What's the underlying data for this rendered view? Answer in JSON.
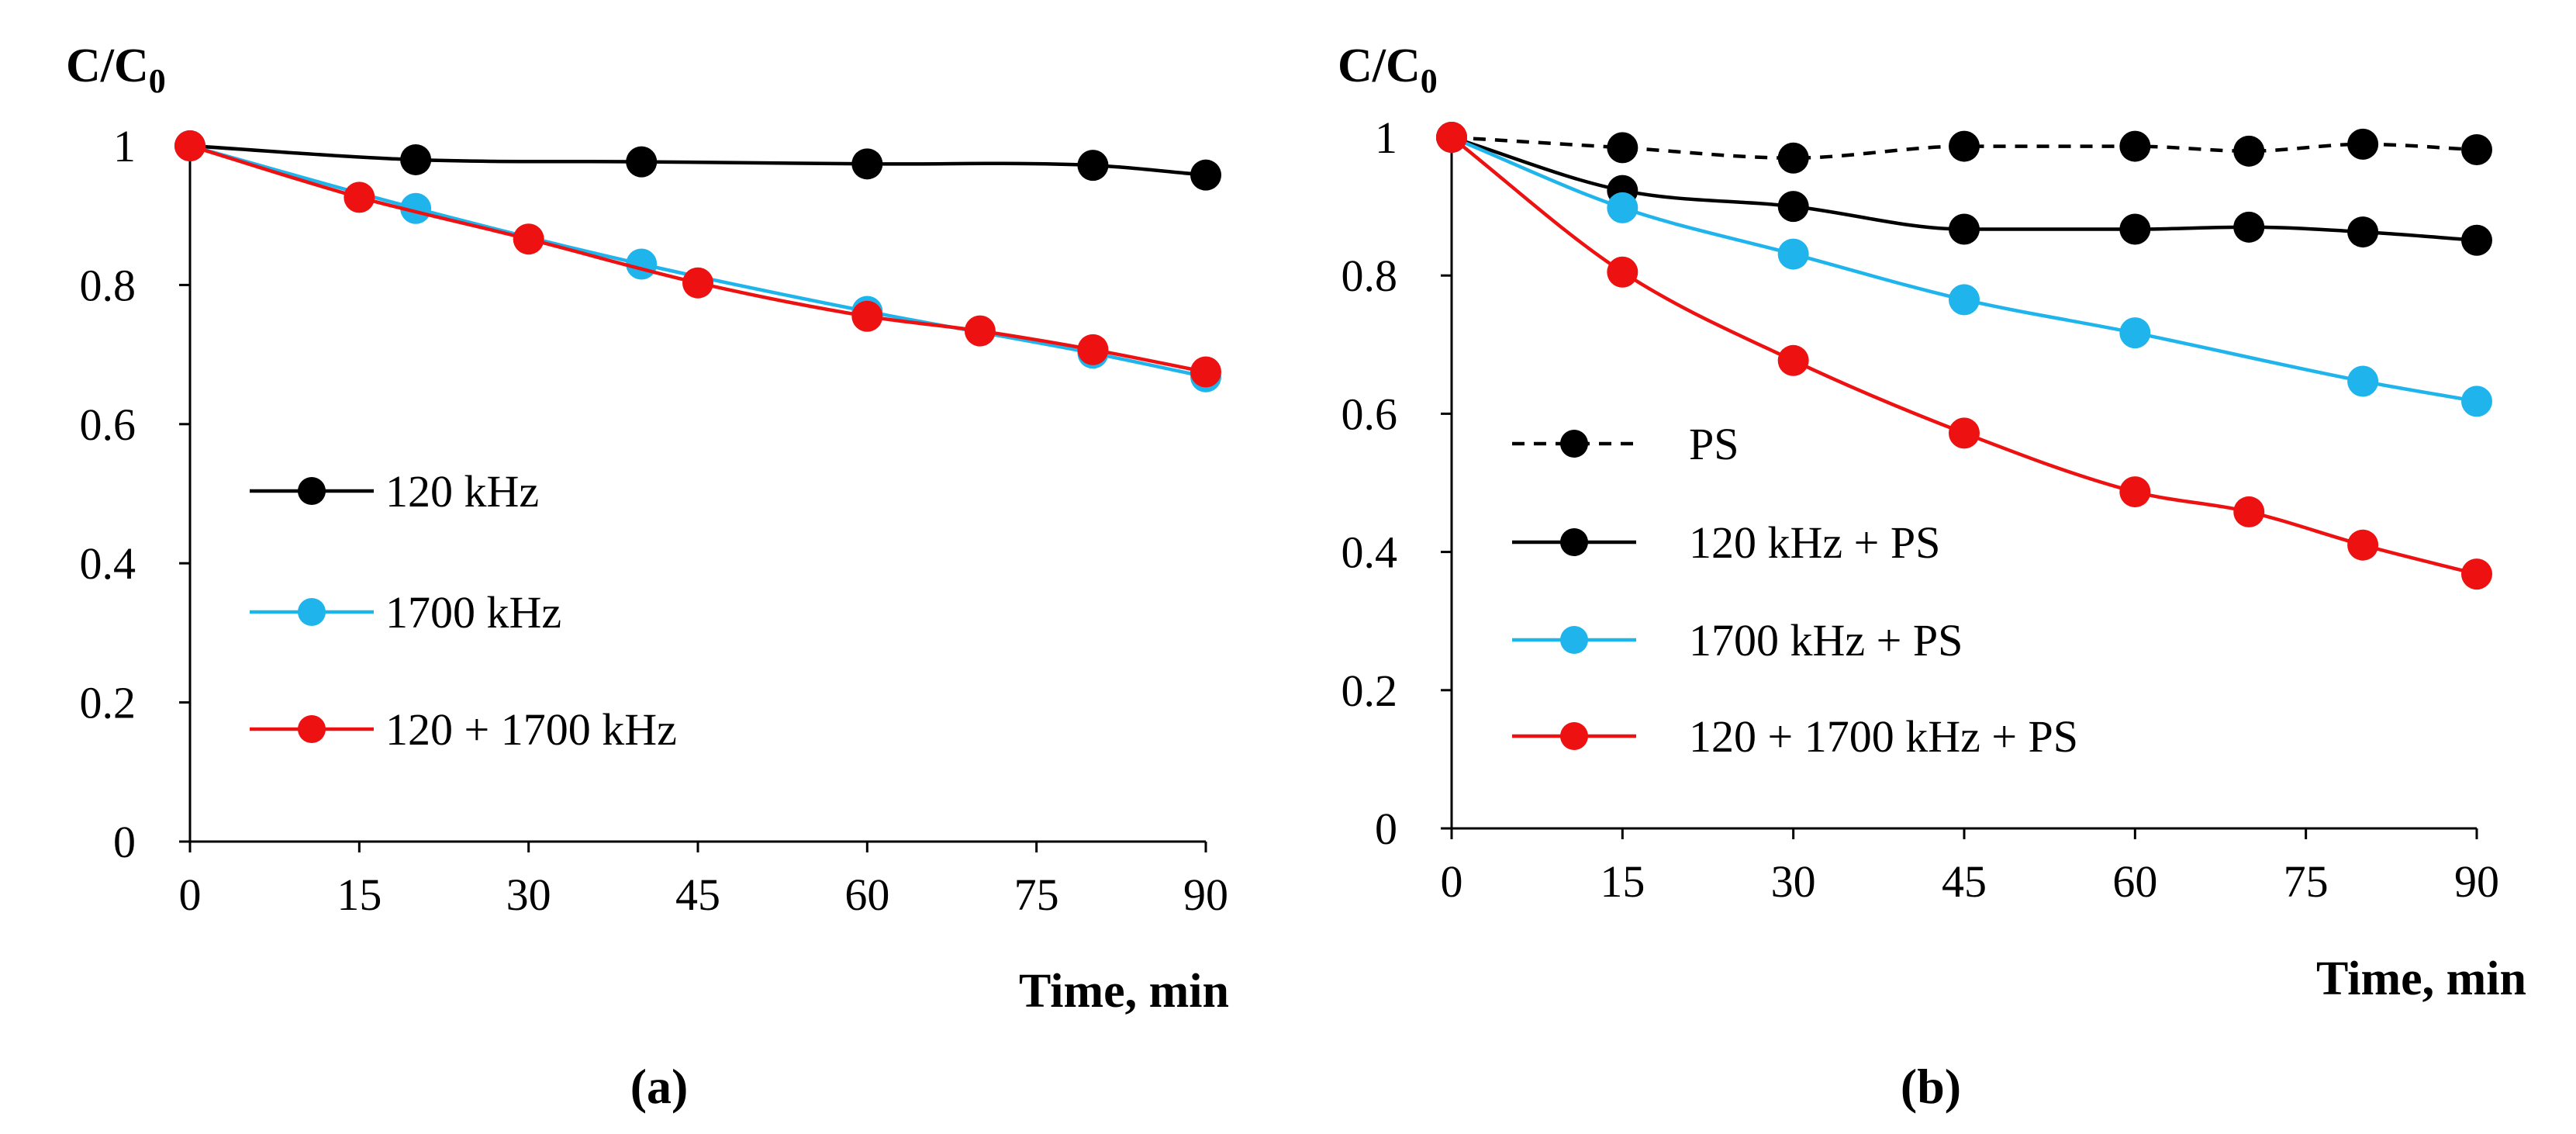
{
  "chart_data": [
    {
      "type": "line",
      "ylabel": "C/C",
      "ylabel_sub": "0",
      "xlabel": "Time, min",
      "caption": "(a)",
      "xlim": [
        0,
        90
      ],
      "ylim": [
        0,
        1
      ],
      "xticks": [
        0,
        15,
        30,
        45,
        60,
        75,
        90
      ],
      "yticks": [
        0,
        0.2,
        0.4,
        0.6,
        0.8,
        1
      ],
      "ytick_labels": [
        "0",
        "0.2",
        "0.4",
        "0.6",
        "0.8",
        "1"
      ],
      "grid": false,
      "legend_position": "left",
      "series": [
        {
          "name": "120 kHz",
          "color": "#000000",
          "dashed": false,
          "x": [
            0,
            20,
            40,
            60,
            80,
            90
          ],
          "y": [
            1.0,
            0.98,
            0.977,
            0.974,
            0.972,
            0.958
          ]
        },
        {
          "name": "1700 kHz",
          "color": "#1fb5ec",
          "dashed": false,
          "x": [
            0,
            20,
            40,
            60,
            80,
            90
          ],
          "y": [
            1.0,
            0.91,
            0.83,
            0.762,
            0.702,
            0.668
          ]
        },
        {
          "name": "120 + 1700 kHz",
          "color": "#ee1111",
          "dashed": false,
          "x": [
            0,
            15,
            30,
            45,
            60,
            70,
            80,
            90
          ],
          "y": [
            1.0,
            0.926,
            0.866,
            0.803,
            0.755,
            0.734,
            0.707,
            0.675
          ]
        }
      ]
    },
    {
      "type": "line",
      "ylabel": "C/C",
      "ylabel_sub": "0",
      "xlabel": "Time, min",
      "caption": "(b)",
      "xlim": [
        0,
        90
      ],
      "ylim": [
        0,
        1
      ],
      "xticks": [
        0,
        15,
        30,
        45,
        60,
        75,
        90
      ],
      "yticks": [
        0,
        0.2,
        0.4,
        0.6,
        0.8,
        1
      ],
      "ytick_labels": [
        "0",
        "0.2",
        "0.4",
        "0.6",
        "0.8",
        "1"
      ],
      "grid": false,
      "legend_position": "left",
      "series": [
        {
          "name": "PS",
          "color": "#000000",
          "dashed": true,
          "x": [
            0,
            15,
            30,
            45,
            60,
            70,
            80,
            90
          ],
          "y": [
            1.0,
            0.985,
            0.97,
            0.987,
            0.987,
            0.98,
            0.99,
            0.982
          ]
        },
        {
          "name": "120 kHz + PS",
          "color": "#000000",
          "dashed": false,
          "x": [
            0,
            15,
            30,
            45,
            60,
            70,
            80,
            90
          ],
          "y": [
            1.0,
            0.923,
            0.9,
            0.867,
            0.867,
            0.87,
            0.863,
            0.851
          ]
        },
        {
          "name": "1700 kHz + PS",
          "color": "#1fb5ec",
          "dashed": false,
          "x": [
            0,
            15,
            30,
            45,
            60,
            80,
            90
          ],
          "y": [
            1.0,
            0.898,
            0.831,
            0.765,
            0.717,
            0.647,
            0.618
          ]
        },
        {
          "name": "120 + 1700 kHz + PS",
          "color": "#ee1111",
          "dashed": false,
          "x": [
            0,
            15,
            30,
            45,
            60,
            70,
            80,
            90
          ],
          "y": [
            1.0,
            0.805,
            0.677,
            0.572,
            0.487,
            0.458,
            0.41,
            0.368
          ]
        }
      ]
    }
  ]
}
